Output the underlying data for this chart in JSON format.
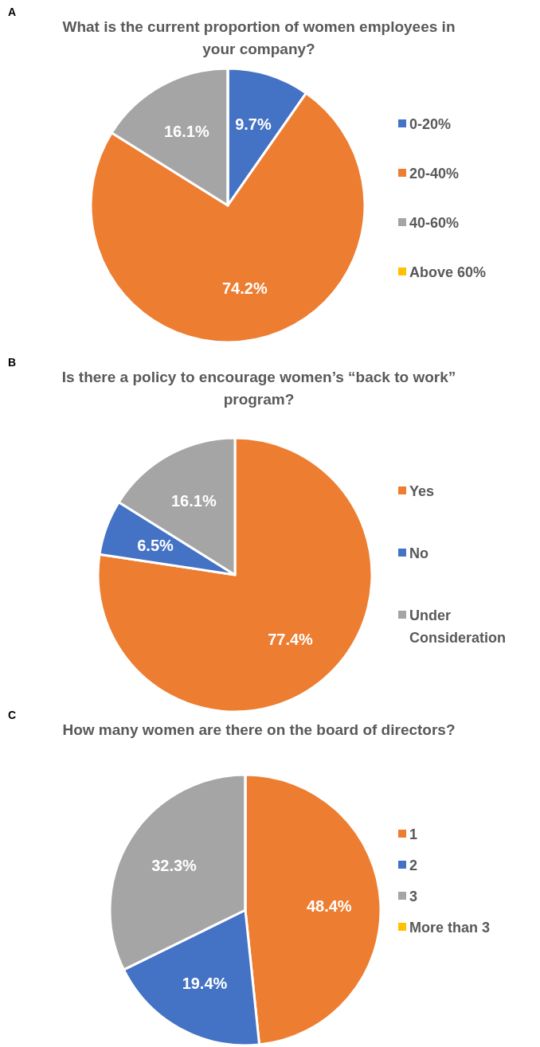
{
  "chart_data": [
    {
      "type": "pie",
      "title": "What is the current proportion of women employees in your company?",
      "annotations": [
        "A"
      ],
      "categories": [
        "0-20%",
        "20-40%",
        "40-60%",
        "Above 60%"
      ],
      "values": [
        9.7,
        74.2,
        16.1,
        0
      ],
      "colors": [
        "#4472c4",
        "#ed7d31",
        "#a5a5a5",
        "#ffc000"
      ],
      "value_labels": [
        "9.7%",
        "74.2%",
        "16.1%",
        null
      ],
      "legend": "right"
    },
    {
      "type": "pie",
      "title": "Is there a policy to encourage women’s “back to work” program?",
      "annotations": [
        "B"
      ],
      "categories": [
        "Yes",
        "No",
        "Under Consideration"
      ],
      "values": [
        77.4,
        6.5,
        16.1
      ],
      "colors": [
        "#ed7d31",
        "#4472c4",
        "#a5a5a5"
      ],
      "value_labels": [
        "77.4%",
        "6.5%",
        "16.1%"
      ],
      "legend": "right"
    },
    {
      "type": "pie",
      "title": "How many women are there on the board of directors?",
      "annotations": [
        "C"
      ],
      "categories": [
        "1",
        "2",
        "3",
        "More than 3"
      ],
      "values": [
        48.4,
        19.4,
        32.3,
        0
      ],
      "colors": [
        "#ed7d31",
        "#4472c4",
        "#a5a5a5",
        "#ffc000"
      ],
      "value_labels": [
        "48.4%",
        "19.4%",
        "32.3%",
        null
      ],
      "legend": "right"
    }
  ]
}
